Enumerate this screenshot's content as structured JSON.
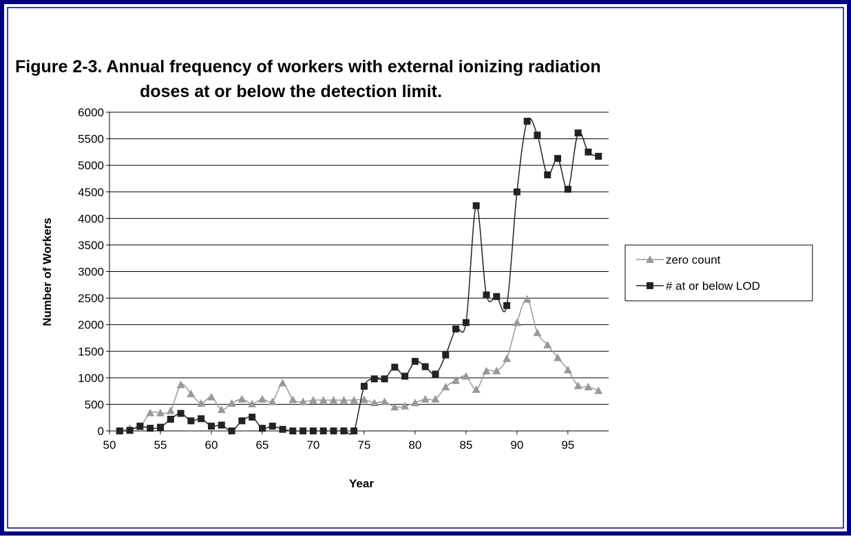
{
  "chart_data": {
    "type": "line",
    "title": "Figure 2-3.  Annual frequency of workers with external ionizing radiation",
    "subtitle": "doses at or below the detection limit.",
    "x_label": "Year",
    "y_label": "Number of Workers",
    "x": [
      51,
      52,
      53,
      54,
      55,
      56,
      57,
      58,
      59,
      60,
      61,
      62,
      63,
      64,
      65,
      66,
      67,
      68,
      69,
      70,
      71,
      72,
      73,
      74,
      75,
      76,
      77,
      78,
      79,
      80,
      81,
      82,
      83,
      84,
      85,
      86,
      87,
      88,
      89,
      90,
      91,
      92,
      93,
      94,
      95,
      96,
      97,
      98
    ],
    "series": [
      {
        "name": "zero count",
        "color": "#999999",
        "marker": "triangle",
        "values": [
          0,
          50,
          80,
          340,
          340,
          380,
          870,
          700,
          520,
          640,
          400,
          520,
          600,
          510,
          600,
          550,
          900,
          590,
          550,
          580,
          580,
          580,
          580,
          580,
          590,
          530,
          550,
          450,
          470,
          530,
          600,
          600,
          830,
          950,
          1030,
          780,
          1130,
          1130,
          1360,
          2040,
          2480,
          1850,
          1620,
          1380,
          1150,
          850,
          830,
          760
        ]
      },
      {
        "name": "# at or below LOD",
        "color": "#222222",
        "marker": "square",
        "values": [
          0,
          10,
          90,
          50,
          70,
          220,
          330,
          190,
          230,
          90,
          110,
          0,
          190,
          260,
          50,
          90,
          30,
          0,
          0,
          0,
          0,
          0,
          0,
          0,
          840,
          980,
          980,
          1200,
          1030,
          1310,
          1210,
          1070,
          1430,
          1920,
          2040,
          4240,
          2560,
          2530,
          2360,
          4500,
          5830,
          5570,
          4820,
          5130,
          4550,
          5610,
          5250,
          5170
        ]
      }
    ],
    "xlim": [
      50,
      99
    ],
    "xticks": [
      50,
      55,
      60,
      65,
      70,
      75,
      80,
      85,
      90,
      95
    ],
    "ylim": [
      0,
      6000
    ],
    "yticks": [
      0,
      500,
      1000,
      1500,
      2000,
      2500,
      3000,
      3500,
      4000,
      4500,
      5000,
      5500,
      6000
    ],
    "grid": true,
    "legend": "right",
    "smooth": true
  }
}
